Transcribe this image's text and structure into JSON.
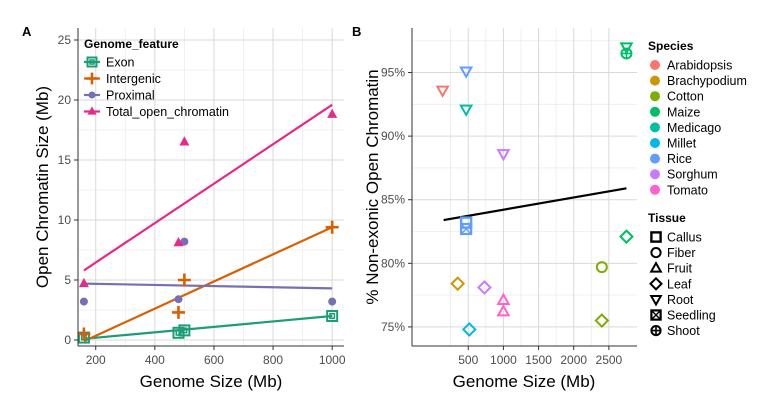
{
  "chart_data": [
    {
      "panel_label": "A",
      "type": "scatter",
      "xlabel": "Genome Size (Mb)",
      "ylabel": "Open Chromatin Size (Mb)",
      "xlim": [
        140,
        1040
      ],
      "ylim": [
        -0.5,
        26
      ],
      "xticks": [
        200,
        400,
        600,
        800,
        1000
      ],
      "yticks": [
        0,
        5,
        10,
        15,
        20,
        25
      ],
      "grid": true,
      "legend": {
        "title": "Genome_feature",
        "placement": "top-left",
        "entries": [
          "Exon",
          "Intergenic",
          "Proximal",
          "Total_open_chromatin"
        ]
      },
      "series": [
        {
          "name": "Exon",
          "color": "#1b9e77",
          "marker": "square",
          "points": [
            [
              160,
              0.2
            ],
            [
              480,
              0.6
            ],
            [
              500,
              0.8
            ],
            [
              1000,
              2.0
            ]
          ],
          "trend": [
            [
              160,
              0.1
            ],
            [
              1000,
              2.0
            ]
          ]
        },
        {
          "name": "Intergenic",
          "color": "#d95f02",
          "marker": "plus",
          "points": [
            [
              160,
              0.5
            ],
            [
              480,
              2.3
            ],
            [
              500,
              5.0
            ],
            [
              1000,
              9.4
            ]
          ],
          "trend": [
            [
              160,
              -0.1
            ],
            [
              1000,
              9.4
            ]
          ]
        },
        {
          "name": "Proximal",
          "color": "#7570b3",
          "marker": "circle",
          "points": [
            [
              160,
              3.2
            ],
            [
              480,
              3.4
            ],
            [
              500,
              8.2
            ],
            [
              1000,
              3.2
            ]
          ],
          "trend": [
            [
              160,
              4.7
            ],
            [
              1000,
              4.3
            ]
          ]
        },
        {
          "name": "Total_open_chromatin",
          "color": "#e7298a",
          "marker": "triangle",
          "points": [
            [
              160,
              4.7
            ],
            [
              480,
              8.1
            ],
            [
              500,
              16.5
            ],
            [
              1000,
              18.8
            ]
          ],
          "trend": [
            [
              160,
              5.8
            ],
            [
              1000,
              19.6
            ]
          ]
        }
      ]
    },
    {
      "panel_label": "B",
      "type": "scatter",
      "xlabel": "Genome Size (Mb)",
      "ylabel": "% Non-exonic Open Chromatin",
      "xlim": [
        -300,
        2900
      ],
      "ylim": [
        73.5,
        98.5
      ],
      "xticks": [
        500,
        1000,
        1500,
        2000,
        2500
      ],
      "yticks": [
        75,
        80,
        85,
        90,
        95
      ],
      "ytick_labels": [
        "75%",
        "80%",
        "85%",
        "90%",
        "95%"
      ],
      "grid": true,
      "trend": [
        [
          150,
          83.4
        ],
        [
          2750,
          85.9
        ]
      ],
      "trend_color": "#000000",
      "species_legend": {
        "title": "Species",
        "entries": [
          {
            "name": "Arabidopsis",
            "color": "#f8766d"
          },
          {
            "name": "Brachypodium",
            "color": "#cd9600"
          },
          {
            "name": "Cotton",
            "color": "#7cae00"
          },
          {
            "name": "Maize",
            "color": "#00be67"
          },
          {
            "name": "Medicago",
            "color": "#00bfa4"
          },
          {
            "name": "Millet",
            "color": "#00b8e7"
          },
          {
            "name": "Rice",
            "color": "#619cff"
          },
          {
            "name": "Sorghum",
            "color": "#c77cff"
          },
          {
            "name": "Tomato",
            "color": "#ff61cc"
          }
        ]
      },
      "tissue_legend": {
        "title": "Tissue",
        "entries": [
          {
            "name": "Callus",
            "shape": "square-filled"
          },
          {
            "name": "Fiber",
            "shape": "circle"
          },
          {
            "name": "Fruit",
            "shape": "triangle"
          },
          {
            "name": "Leaf",
            "shape": "diamond"
          },
          {
            "name": "Root",
            "shape": "triangle-down"
          },
          {
            "name": "Seedling",
            "shape": "square-cross"
          },
          {
            "name": "Shoot",
            "shape": "circle-plus"
          }
        ]
      },
      "points": [
        {
          "species": "Arabidopsis",
          "tissue": "Root",
          "x": 135,
          "y": 93.6
        },
        {
          "species": "Brachypodium",
          "tissue": "Leaf",
          "x": 350,
          "y": 78.4
        },
        {
          "species": "Rice",
          "tissue": "Root",
          "x": 470,
          "y": 95.1
        },
        {
          "species": "Medicago",
          "tissue": "Root",
          "x": 470,
          "y": 92.1
        },
        {
          "species": "Rice",
          "tissue": "Callus",
          "x": 470,
          "y": 83.2
        },
        {
          "species": "Rice",
          "tissue": "Seedling",
          "x": 470,
          "y": 82.7
        },
        {
          "species": "Millet",
          "tissue": "Leaf",
          "x": 515,
          "y": 74.8
        },
        {
          "species": "Sorghum",
          "tissue": "Leaf",
          "x": 730,
          "y": 78.1
        },
        {
          "species": "Sorghum",
          "tissue": "Root",
          "x": 1000,
          "y": 88.6
        },
        {
          "species": "Tomato",
          "tissue": "Fruit",
          "x": 1000,
          "y": 77.1
        },
        {
          "species": "Tomato",
          "tissue": "Fruit",
          "x": 1000,
          "y": 76.2
        },
        {
          "species": "Cotton",
          "tissue": "Fiber",
          "x": 2400,
          "y": 79.7
        },
        {
          "species": "Cotton",
          "tissue": "Leaf",
          "x": 2400,
          "y": 75.5
        },
        {
          "species": "Maize",
          "tissue": "Root",
          "x": 2750,
          "y": 97.0
        },
        {
          "species": "Maize",
          "tissue": "Shoot",
          "x": 2750,
          "y": 96.5
        },
        {
          "species": "Maize",
          "tissue": "Leaf",
          "x": 2750,
          "y": 82.1
        }
      ]
    }
  ]
}
